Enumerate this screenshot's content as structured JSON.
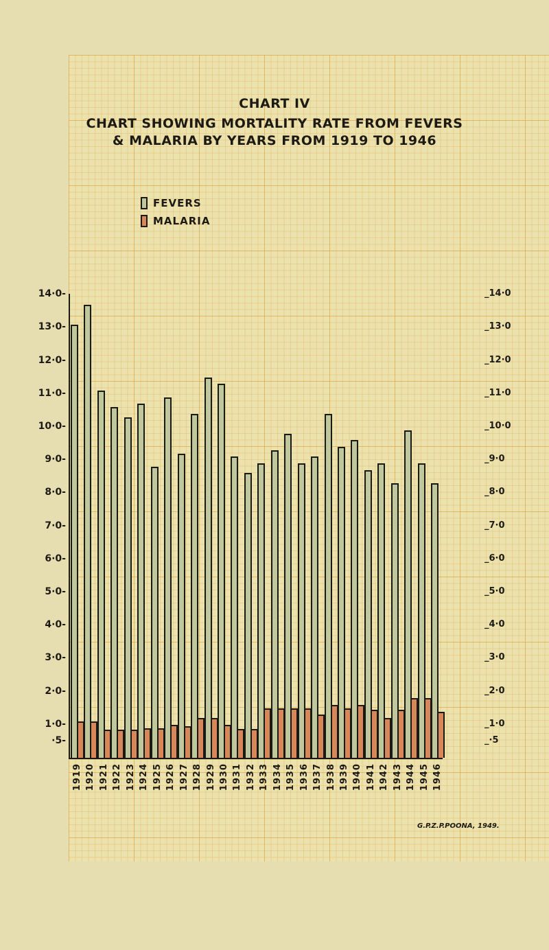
{
  "header": {
    "chart_number": "CHART IV",
    "title_line1": "CHART SHOWING MORTALITY RATE FROM FEVERS",
    "title_line2": "& MALARIA BY YEARS FROM 1919 TO 1946"
  },
  "legend": {
    "fevers": "FEVERS",
    "malaria": "MALARIA"
  },
  "colors": {
    "fevers": "#c1c79c",
    "malaria": "#d8875a",
    "paper": "#ece2ad",
    "grid": "#dea03c"
  },
  "signature": "G.P.Z.P.POONA, 1949.",
  "chart_data": {
    "type": "bar",
    "title": "CHART SHOWING MORTALITY RATE FROM FEVERS & MALARIA BY YEARS FROM 1919 TO 1946",
    "xlabel": "",
    "ylabel": "",
    "ylim": [
      0,
      14.0
    ],
    "grid": true,
    "legend_position": "top-left",
    "y_ticks_left": [
      "14·0",
      "13·0",
      "12·0",
      "11·0",
      "10·0",
      "9·0",
      "8·0",
      "7·0",
      "6·0",
      "5·0",
      "4·0",
      "3·0",
      "2·0",
      "1·0",
      "·5"
    ],
    "y_ticks_right": [
      "14·0",
      "13·0",
      "12·0",
      "11·0",
      "10·0",
      "9·0",
      "8·0",
      "7·0",
      "6·0",
      "5·0",
      "4·0",
      "3·0",
      "2·0",
      "1·0",
      "·5"
    ],
    "categories": [
      "1919",
      "1920",
      "1921",
      "1922",
      "1923",
      "1924",
      "1925",
      "1926",
      "1927",
      "1928",
      "1929",
      "1930",
      "1931",
      "1932",
      "1933",
      "1934",
      "1935",
      "1936",
      "1937",
      "1938",
      "1939",
      "1940",
      "1941",
      "1942",
      "1943",
      "1944",
      "1945",
      "1946"
    ],
    "series": [
      {
        "name": "FEVERS",
        "values": [
          13.1,
          13.7,
          11.1,
          10.6,
          10.3,
          10.7,
          8.8,
          10.9,
          9.2,
          10.4,
          11.5,
          11.3,
          9.1,
          8.6,
          8.9,
          9.3,
          9.8,
          8.9,
          9.1,
          10.4,
          9.4,
          9.6,
          8.7,
          8.9,
          8.3,
          9.9,
          8.9,
          8.3
        ]
      },
      {
        "name": "MALARIA",
        "values": [
          1.1,
          1.1,
          0.85,
          0.85,
          0.85,
          0.9,
          0.9,
          1.0,
          0.95,
          1.2,
          1.2,
          1.0,
          0.87,
          0.87,
          1.5,
          1.5,
          1.5,
          1.5,
          1.3,
          1.6,
          1.5,
          1.6,
          1.45,
          1.2,
          1.45,
          1.8,
          1.8,
          1.4
        ]
      }
    ]
  }
}
